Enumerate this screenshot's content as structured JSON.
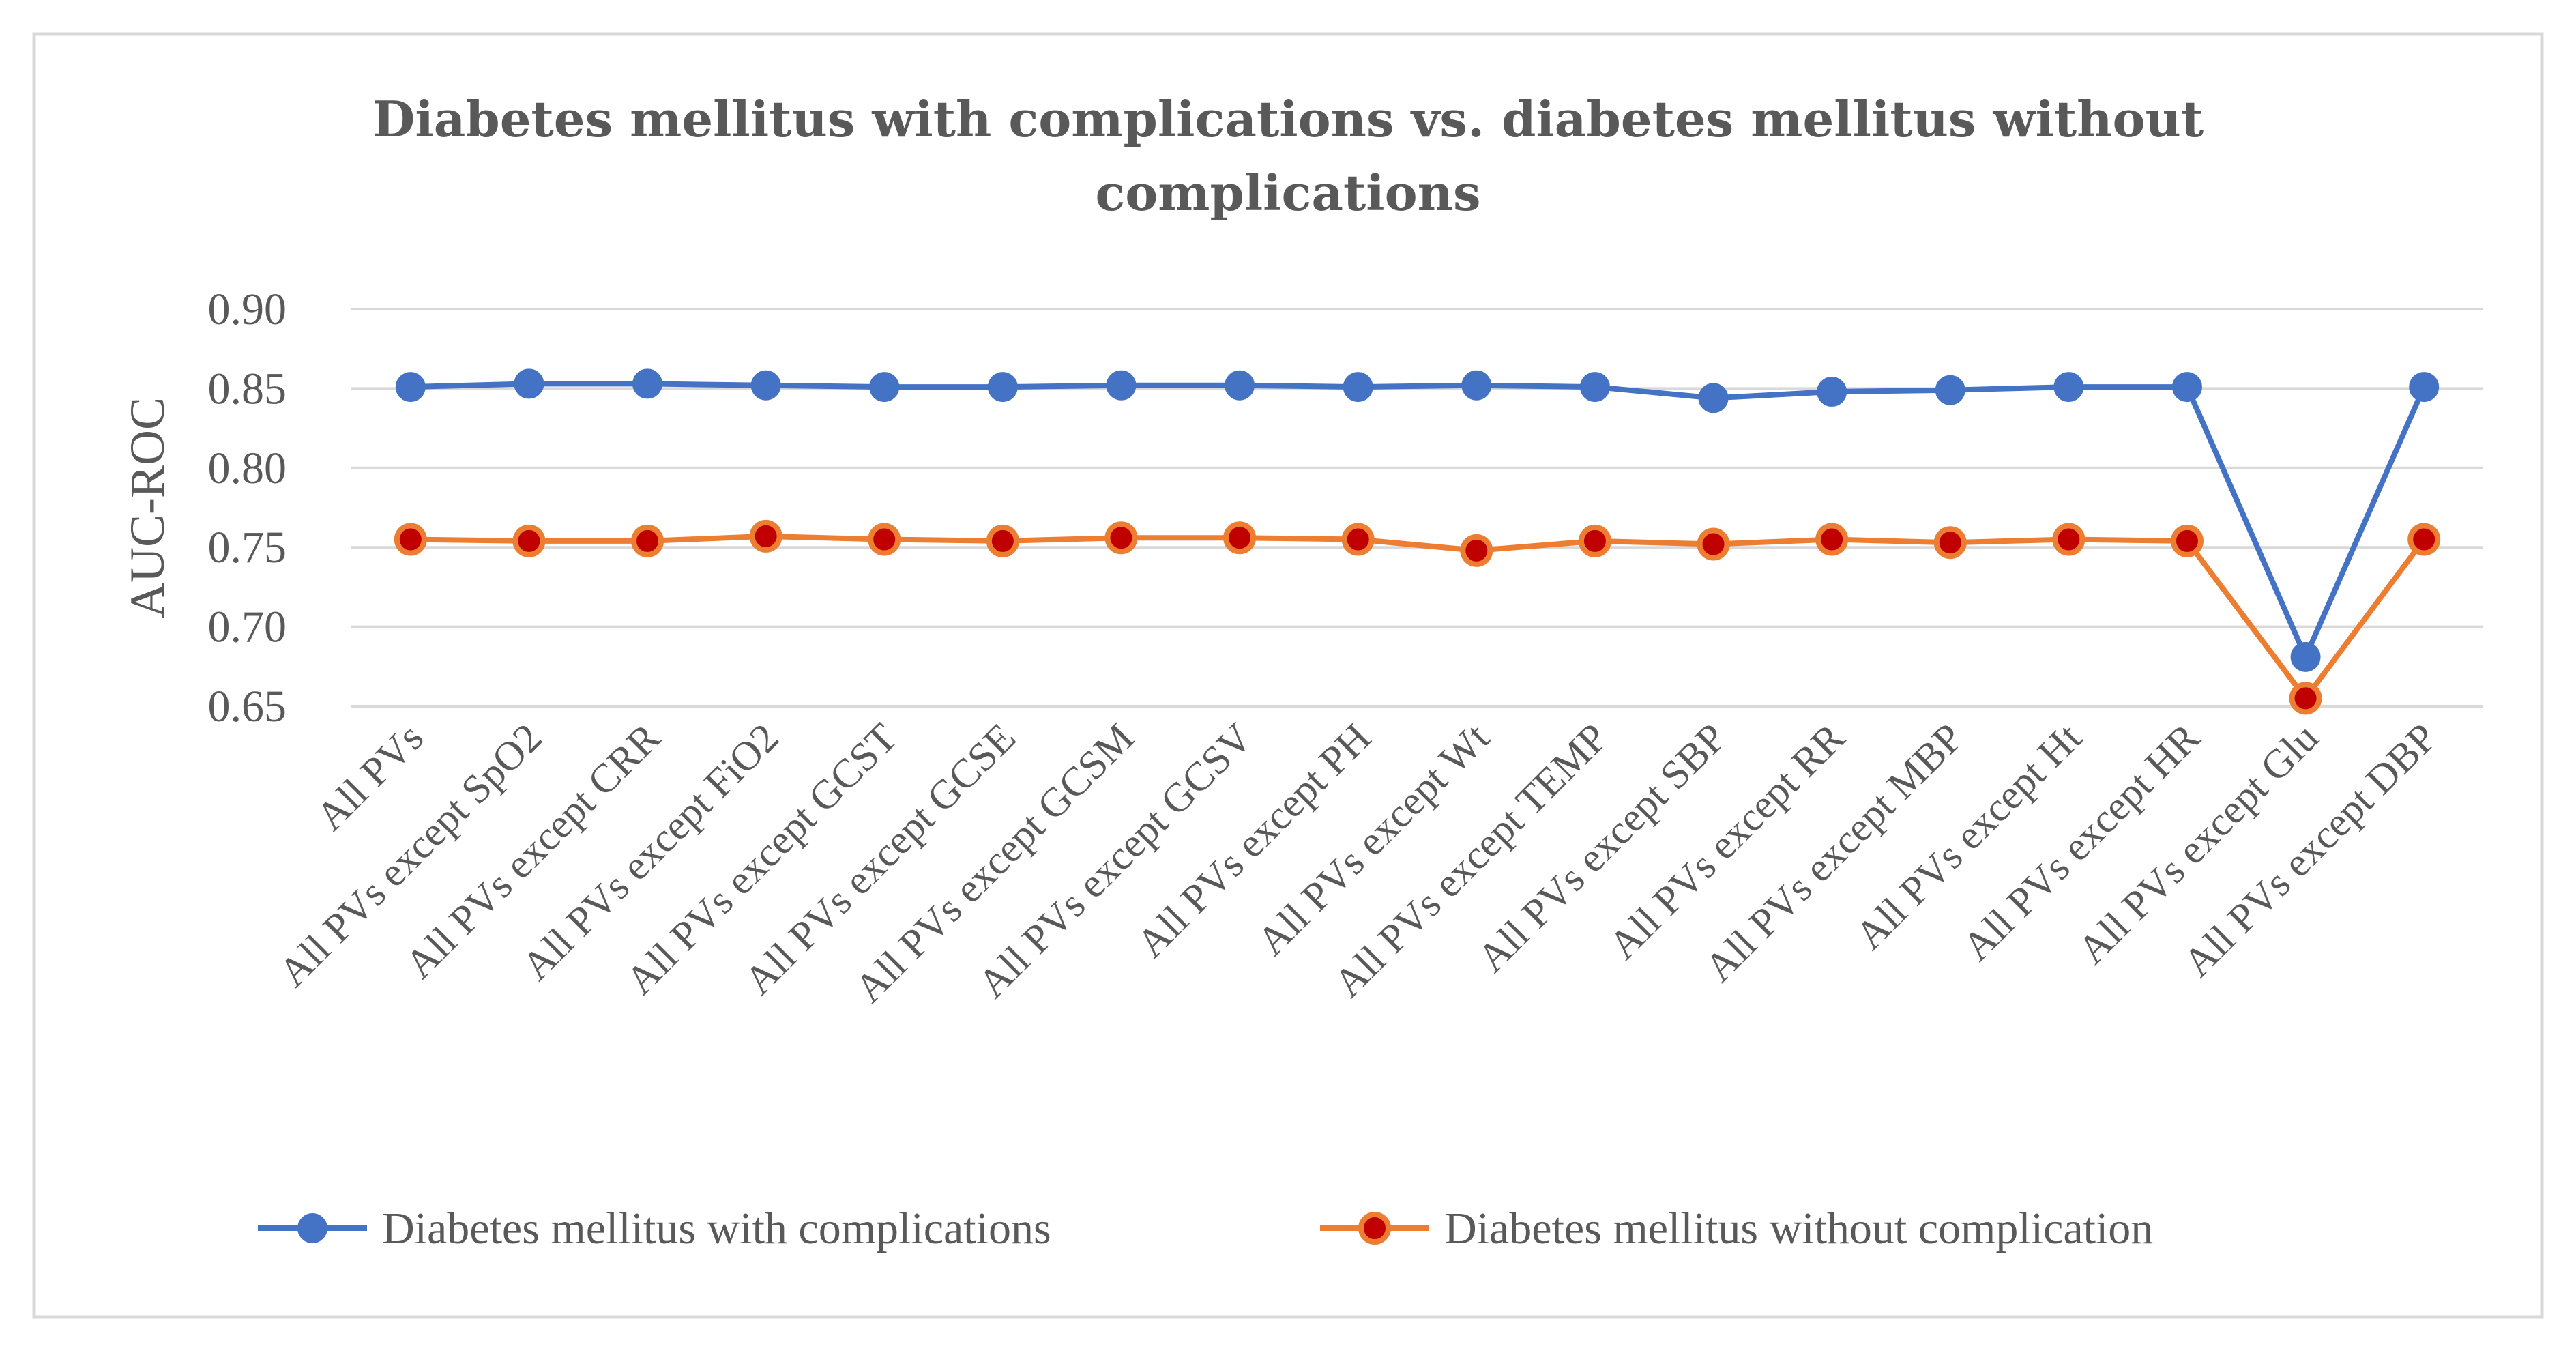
{
  "chart_data": {
    "type": "line",
    "title_lines": [
      "Diabetes mellitus with complications vs. diabetes mellitus without",
      "complications"
    ],
    "xlabel": "",
    "ylabel": "AUC-ROC",
    "ylim": [
      0.65,
      0.9
    ],
    "yticks": [
      0.65,
      0.7,
      0.75,
      0.8,
      0.85,
      0.9
    ],
    "ytick_labels": [
      "0.65",
      "0.70",
      "0.75",
      "0.80",
      "0.85",
      "0.90"
    ],
    "grid": true,
    "legend_position": "bottom",
    "categories": [
      "All PVs",
      "All PVs except SpO2",
      "All PVs except CRR",
      "All PVs except FiO2",
      "All PVs except GCST",
      "All PVs except GCSE",
      "All PVs except GCSM",
      "All PVs except GCSV",
      "All PVs except PH",
      "All PVs except Wt",
      "All PVs except TEMP",
      "All PVs except SBP",
      "All PVs except RR",
      "All PVs except MBP",
      "All PVs except Ht",
      "All PVs except HR",
      "All PVs except Glu",
      "All PVs except DBP"
    ],
    "series": [
      {
        "name": "Diabetes mellitus with complications",
        "color": "#4472C4",
        "marker_fill": "#4472C4",
        "values": [
          0.851,
          0.853,
          0.853,
          0.852,
          0.851,
          0.851,
          0.852,
          0.852,
          0.851,
          0.852,
          0.851,
          0.844,
          0.848,
          0.849,
          0.851,
          0.851,
          0.681,
          0.851
        ]
      },
      {
        "name": "Diabetes mellitus without complication",
        "color": "#ED7D31",
        "marker_fill": "#C00000",
        "values": [
          0.755,
          0.754,
          0.754,
          0.757,
          0.755,
          0.754,
          0.756,
          0.756,
          0.755,
          0.748,
          0.754,
          0.752,
          0.755,
          0.753,
          0.755,
          0.754,
          0.655,
          0.755
        ]
      }
    ]
  }
}
